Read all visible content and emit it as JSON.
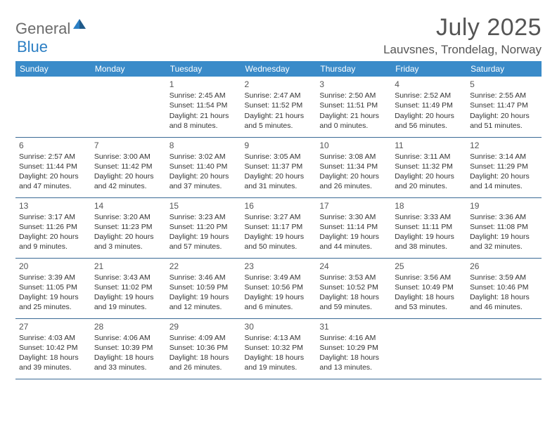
{
  "logo": {
    "text_general": "General",
    "text_blue": "Blue",
    "icon_color": "#2c7fc4"
  },
  "header": {
    "month_title": "July 2025",
    "location": "Lauvsnes, Trondelag, Norway"
  },
  "colors": {
    "header_bg": "#3a8bc9",
    "header_text": "#ffffff",
    "border": "#3a6a95",
    "text": "#333333",
    "title_text": "#555555"
  },
  "day_names": [
    "Sunday",
    "Monday",
    "Tuesday",
    "Wednesday",
    "Thursday",
    "Friday",
    "Saturday"
  ],
  "weeks": [
    [
      null,
      null,
      {
        "num": "1",
        "sunrise": "Sunrise: 2:45 AM",
        "sunset": "Sunset: 11:54 PM",
        "daylight": "Daylight: 21 hours and 8 minutes."
      },
      {
        "num": "2",
        "sunrise": "Sunrise: 2:47 AM",
        "sunset": "Sunset: 11:52 PM",
        "daylight": "Daylight: 21 hours and 5 minutes."
      },
      {
        "num": "3",
        "sunrise": "Sunrise: 2:50 AM",
        "sunset": "Sunset: 11:51 PM",
        "daylight": "Daylight: 21 hours and 0 minutes."
      },
      {
        "num": "4",
        "sunrise": "Sunrise: 2:52 AM",
        "sunset": "Sunset: 11:49 PM",
        "daylight": "Daylight: 20 hours and 56 minutes."
      },
      {
        "num": "5",
        "sunrise": "Sunrise: 2:55 AM",
        "sunset": "Sunset: 11:47 PM",
        "daylight": "Daylight: 20 hours and 51 minutes."
      }
    ],
    [
      {
        "num": "6",
        "sunrise": "Sunrise: 2:57 AM",
        "sunset": "Sunset: 11:44 PM",
        "daylight": "Daylight: 20 hours and 47 minutes."
      },
      {
        "num": "7",
        "sunrise": "Sunrise: 3:00 AM",
        "sunset": "Sunset: 11:42 PM",
        "daylight": "Daylight: 20 hours and 42 minutes."
      },
      {
        "num": "8",
        "sunrise": "Sunrise: 3:02 AM",
        "sunset": "Sunset: 11:40 PM",
        "daylight": "Daylight: 20 hours and 37 minutes."
      },
      {
        "num": "9",
        "sunrise": "Sunrise: 3:05 AM",
        "sunset": "Sunset: 11:37 PM",
        "daylight": "Daylight: 20 hours and 31 minutes."
      },
      {
        "num": "10",
        "sunrise": "Sunrise: 3:08 AM",
        "sunset": "Sunset: 11:34 PM",
        "daylight": "Daylight: 20 hours and 26 minutes."
      },
      {
        "num": "11",
        "sunrise": "Sunrise: 3:11 AM",
        "sunset": "Sunset: 11:32 PM",
        "daylight": "Daylight: 20 hours and 20 minutes."
      },
      {
        "num": "12",
        "sunrise": "Sunrise: 3:14 AM",
        "sunset": "Sunset: 11:29 PM",
        "daylight": "Daylight: 20 hours and 14 minutes."
      }
    ],
    [
      {
        "num": "13",
        "sunrise": "Sunrise: 3:17 AM",
        "sunset": "Sunset: 11:26 PM",
        "daylight": "Daylight: 20 hours and 9 minutes."
      },
      {
        "num": "14",
        "sunrise": "Sunrise: 3:20 AM",
        "sunset": "Sunset: 11:23 PM",
        "daylight": "Daylight: 20 hours and 3 minutes."
      },
      {
        "num": "15",
        "sunrise": "Sunrise: 3:23 AM",
        "sunset": "Sunset: 11:20 PM",
        "daylight": "Daylight: 19 hours and 57 minutes."
      },
      {
        "num": "16",
        "sunrise": "Sunrise: 3:27 AM",
        "sunset": "Sunset: 11:17 PM",
        "daylight": "Daylight: 19 hours and 50 minutes."
      },
      {
        "num": "17",
        "sunrise": "Sunrise: 3:30 AM",
        "sunset": "Sunset: 11:14 PM",
        "daylight": "Daylight: 19 hours and 44 minutes."
      },
      {
        "num": "18",
        "sunrise": "Sunrise: 3:33 AM",
        "sunset": "Sunset: 11:11 PM",
        "daylight": "Daylight: 19 hours and 38 minutes."
      },
      {
        "num": "19",
        "sunrise": "Sunrise: 3:36 AM",
        "sunset": "Sunset: 11:08 PM",
        "daylight": "Daylight: 19 hours and 32 minutes."
      }
    ],
    [
      {
        "num": "20",
        "sunrise": "Sunrise: 3:39 AM",
        "sunset": "Sunset: 11:05 PM",
        "daylight": "Daylight: 19 hours and 25 minutes."
      },
      {
        "num": "21",
        "sunrise": "Sunrise: 3:43 AM",
        "sunset": "Sunset: 11:02 PM",
        "daylight": "Daylight: 19 hours and 19 minutes."
      },
      {
        "num": "22",
        "sunrise": "Sunrise: 3:46 AM",
        "sunset": "Sunset: 10:59 PM",
        "daylight": "Daylight: 19 hours and 12 minutes."
      },
      {
        "num": "23",
        "sunrise": "Sunrise: 3:49 AM",
        "sunset": "Sunset: 10:56 PM",
        "daylight": "Daylight: 19 hours and 6 minutes."
      },
      {
        "num": "24",
        "sunrise": "Sunrise: 3:53 AM",
        "sunset": "Sunset: 10:52 PM",
        "daylight": "Daylight: 18 hours and 59 minutes."
      },
      {
        "num": "25",
        "sunrise": "Sunrise: 3:56 AM",
        "sunset": "Sunset: 10:49 PM",
        "daylight": "Daylight: 18 hours and 53 minutes."
      },
      {
        "num": "26",
        "sunrise": "Sunrise: 3:59 AM",
        "sunset": "Sunset: 10:46 PM",
        "daylight": "Daylight: 18 hours and 46 minutes."
      }
    ],
    [
      {
        "num": "27",
        "sunrise": "Sunrise: 4:03 AM",
        "sunset": "Sunset: 10:42 PM",
        "daylight": "Daylight: 18 hours and 39 minutes."
      },
      {
        "num": "28",
        "sunrise": "Sunrise: 4:06 AM",
        "sunset": "Sunset: 10:39 PM",
        "daylight": "Daylight: 18 hours and 33 minutes."
      },
      {
        "num": "29",
        "sunrise": "Sunrise: 4:09 AM",
        "sunset": "Sunset: 10:36 PM",
        "daylight": "Daylight: 18 hours and 26 minutes."
      },
      {
        "num": "30",
        "sunrise": "Sunrise: 4:13 AM",
        "sunset": "Sunset: 10:32 PM",
        "daylight": "Daylight: 18 hours and 19 minutes."
      },
      {
        "num": "31",
        "sunrise": "Sunrise: 4:16 AM",
        "sunset": "Sunset: 10:29 PM",
        "daylight": "Daylight: 18 hours and 13 minutes."
      },
      null,
      null
    ]
  ]
}
